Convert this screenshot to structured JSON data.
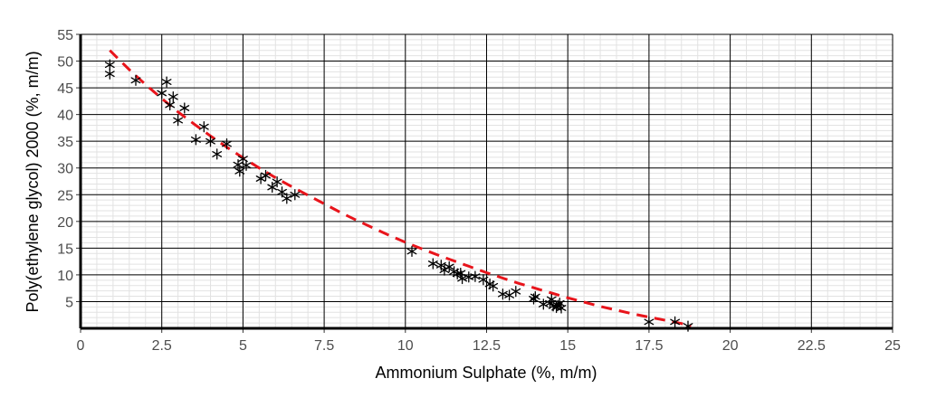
{
  "chart_data": {
    "type": "scatter",
    "xlabel": "Ammonium Sulphate (%, m/m)",
    "ylabel": "Poly(ethylene glycol) 2000 (%, m/m)",
    "xlim": [
      0,
      25
    ],
    "ylim": [
      0,
      55
    ],
    "x_ticks": [
      0,
      2.5,
      5,
      7.5,
      10,
      12.5,
      15,
      17.5,
      20,
      22.5,
      25
    ],
    "x_tick_labels": [
      "0",
      "2.5",
      "5",
      "7.5",
      "10",
      "12.5",
      "15",
      "17.5",
      "20",
      "22.5",
      "25"
    ],
    "y_ticks": [
      5,
      10,
      15,
      20,
      25,
      30,
      35,
      40,
      45,
      50,
      55
    ],
    "y_tick_labels": [
      "5",
      "10",
      "15",
      "20",
      "25",
      "30",
      "35",
      "40",
      "45",
      "50",
      "55"
    ],
    "grid": true,
    "series": [
      {
        "marker": "asterisk",
        "color": "#000000",
        "points": [
          [
            0.9,
            49.3
          ],
          [
            0.9,
            47.6
          ],
          [
            1.7,
            46.4
          ],
          [
            2.5,
            44.0
          ],
          [
            2.65,
            46.1
          ],
          [
            2.75,
            41.8
          ],
          [
            2.85,
            43.3
          ],
          [
            3.0,
            38.9
          ],
          [
            3.2,
            41.2
          ],
          [
            3.55,
            35.3
          ],
          [
            3.8,
            37.7
          ],
          [
            4.0,
            35.0
          ],
          [
            4.2,
            32.6
          ],
          [
            4.5,
            34.5
          ],
          [
            4.85,
            30.6
          ],
          [
            4.9,
            29.4
          ],
          [
            5.0,
            31.7
          ],
          [
            5.1,
            30.5
          ],
          [
            5.55,
            28.0
          ],
          [
            5.7,
            28.6
          ],
          [
            5.9,
            26.4
          ],
          [
            6.05,
            27.4
          ],
          [
            6.2,
            25.5
          ],
          [
            6.35,
            24.3
          ],
          [
            6.6,
            25.0
          ],
          [
            10.2,
            14.4
          ],
          [
            10.85,
            12.1
          ],
          [
            11.1,
            11.8
          ],
          [
            11.2,
            10.9
          ],
          [
            11.35,
            11.5
          ],
          [
            11.5,
            10.6
          ],
          [
            11.6,
            10.2
          ],
          [
            11.75,
            9.3
          ],
          [
            11.7,
            10.3
          ],
          [
            11.95,
            9.6
          ],
          [
            12.15,
            9.7
          ],
          [
            12.4,
            9.1
          ],
          [
            12.6,
            8.3
          ],
          [
            12.7,
            7.9
          ],
          [
            13.0,
            6.4
          ],
          [
            13.2,
            6.2
          ],
          [
            13.4,
            6.9
          ],
          [
            13.95,
            5.5
          ],
          [
            14.0,
            5.9
          ],
          [
            14.25,
            4.5
          ],
          [
            14.45,
            4.7
          ],
          [
            14.55,
            4.2
          ],
          [
            14.5,
            5.4
          ],
          [
            14.65,
            3.9
          ],
          [
            14.75,
            4.7
          ],
          [
            14.8,
            3.8
          ],
          [
            14.7,
            4.3
          ],
          [
            17.5,
            1.2
          ],
          [
            18.3,
            1.2
          ],
          [
            18.7,
            0.4
          ]
        ]
      }
    ],
    "fit_curve": {
      "style": "dashed",
      "color": "#e8141b",
      "points": [
        [
          0.9,
          52.0
        ],
        [
          1.5,
          48.4
        ],
        [
          2.0,
          45.6
        ],
        [
          2.5,
          43.0
        ],
        [
          3.0,
          40.5
        ],
        [
          3.5,
          38.2
        ],
        [
          4.0,
          36.0
        ],
        [
          4.5,
          33.9
        ],
        [
          5.0,
          31.9
        ],
        [
          5.5,
          30.0
        ],
        [
          6.0,
          28.2
        ],
        [
          6.5,
          26.5
        ],
        [
          7.0,
          24.9
        ],
        [
          7.5,
          23.3
        ],
        [
          8.0,
          21.7
        ],
        [
          8.5,
          20.2
        ],
        [
          9.0,
          18.8
        ],
        [
          9.5,
          17.4
        ],
        [
          10.0,
          16.1
        ],
        [
          10.5,
          14.9
        ],
        [
          11.0,
          13.7
        ],
        [
          11.5,
          12.6
        ],
        [
          12.0,
          11.5
        ],
        [
          12.5,
          10.4
        ],
        [
          13.0,
          9.4
        ],
        [
          13.5,
          8.4
        ],
        [
          14.0,
          7.5
        ],
        [
          14.5,
          6.6
        ],
        [
          15.0,
          5.7
        ],
        [
          15.5,
          4.9
        ],
        [
          16.0,
          4.1
        ],
        [
          16.5,
          3.4
        ],
        [
          17.0,
          2.7
        ],
        [
          17.5,
          2.1
        ],
        [
          18.0,
          1.5
        ],
        [
          18.5,
          0.9
        ],
        [
          18.8,
          0.5
        ]
      ]
    }
  }
}
